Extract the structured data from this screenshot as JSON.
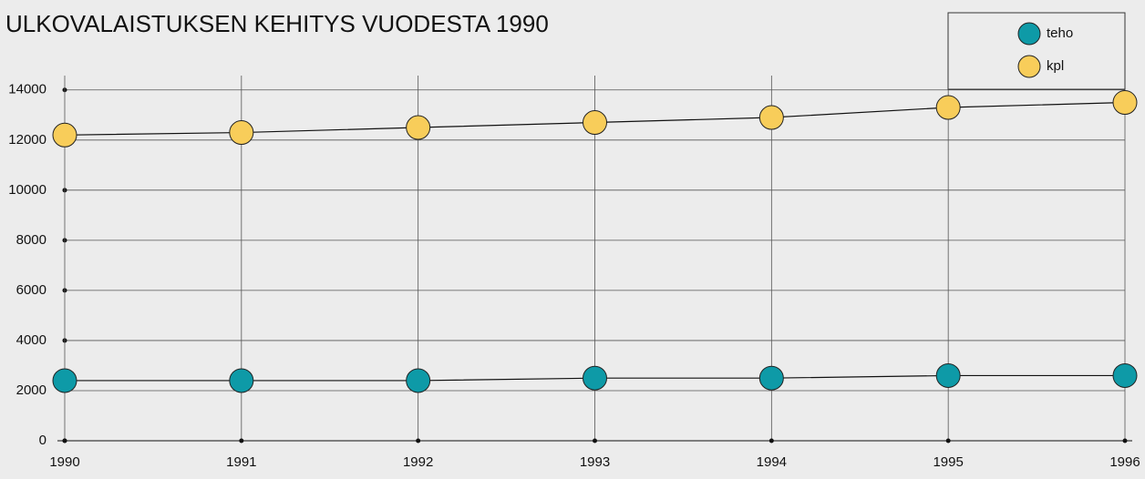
{
  "chart_data": {
    "type": "line",
    "title": "ULKOVALAISTUKSEN KEHITYS VUODESTA 1990",
    "x": [
      1990,
      1991,
      1992,
      1993,
      1994,
      1995,
      1996
    ],
    "series": [
      {
        "name": "teho",
        "color": "#0e9aa7",
        "values": [
          2400,
          2400,
          2400,
          2500,
          2500,
          2600,
          2600
        ]
      },
      {
        "name": "kpl",
        "color": "#f8cd5a",
        "values": [
          12200,
          12300,
          12500,
          12700,
          12900,
          13300,
          13500
        ]
      }
    ],
    "xlim": [
      1990,
      1996
    ],
    "xticks": [
      1990,
      1991,
      1992,
      1993,
      1994,
      1995,
      1996
    ],
    "ylim": [
      0,
      14500
    ],
    "yticks": [
      0,
      2000,
      4000,
      6000,
      8000,
      10000,
      12000,
      14000
    ],
    "grid": true,
    "legend": "upper right"
  }
}
